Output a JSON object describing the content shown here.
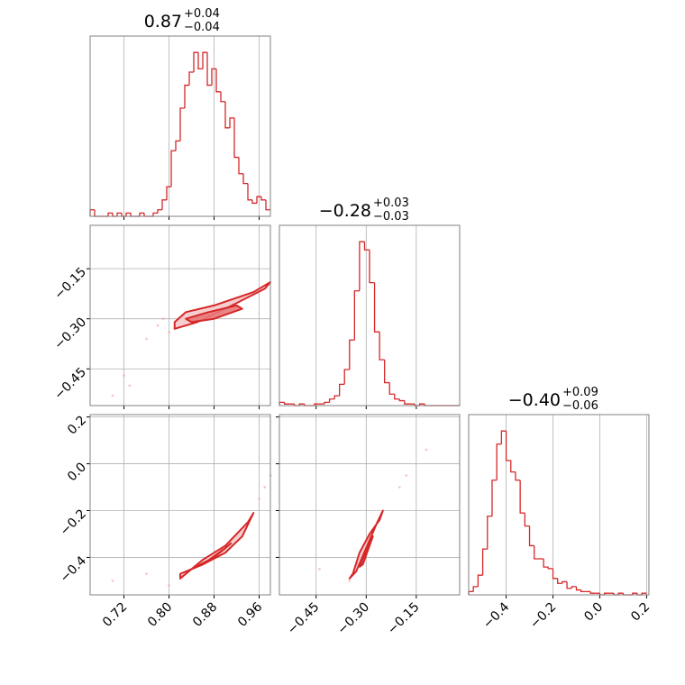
{
  "chart_data": {
    "type": "corner",
    "color": "#d62728",
    "grid": true,
    "parameters": [
      {
        "title": {
          "value": "0.87",
          "plus": "+0.04",
          "minus": "−0.04"
        },
        "lim": [
          0.66,
          0.98
        ],
        "ticks": [
          0.72,
          {
            "value": 0.8,
            "label": "0.80"
          },
          0.88,
          0.96
        ],
        "bins": [
          0.66,
          0.668,
          0.676,
          0.684,
          0.692,
          0.7,
          0.708,
          0.716,
          0.724,
          0.732,
          0.74,
          0.748,
          0.756,
          0.764,
          0.772,
          0.78,
          0.788,
          0.796,
          0.804,
          0.812,
          0.82,
          0.828,
          0.836,
          0.844,
          0.852,
          0.86,
          0.868,
          0.876,
          0.884,
          0.892,
          0.9,
          0.908,
          0.916,
          0.924,
          0.932,
          0.94,
          0.948,
          0.956,
          0.964,
          0.972,
          0.98
        ],
        "counts": [
          2,
          0,
          0,
          0,
          1,
          0,
          1,
          0,
          1,
          0,
          0,
          1,
          0,
          0,
          1,
          2,
          5,
          9,
          20,
          23,
          33,
          40,
          44,
          50,
          45,
          50,
          40,
          45,
          38,
          35,
          27,
          30,
          18,
          13,
          10,
          5,
          4,
          6,
          5,
          2
        ],
        "count_lim": [
          0,
          55
        ]
      },
      {
        "title": {
          "value": "−0.28",
          "plus": "+0.03",
          "minus": "−0.03"
        },
        "lim": [
          -0.56,
          -0.02
        ],
        "ticks": [
          {
            "value": -0.45,
            "label": "−0.45"
          },
          {
            "value": -0.3,
            "label": "−0.30"
          },
          {
            "value": -0.15,
            "label": "−0.15"
          }
        ],
        "bins": [
          -0.56,
          -0.545,
          -0.53,
          -0.515,
          -0.5,
          -0.485,
          -0.47,
          -0.455,
          -0.44,
          -0.425,
          -0.41,
          -0.395,
          -0.38,
          -0.365,
          -0.35,
          -0.335,
          -0.32,
          -0.305,
          -0.29,
          -0.275,
          -0.26,
          -0.245,
          -0.23,
          -0.215,
          -0.2,
          -0.185,
          -0.17,
          -0.155,
          -0.14,
          -0.125,
          -0.11,
          -0.095,
          -0.08,
          -0.065,
          -0.05,
          -0.035,
          -0.02
        ],
        "counts": [
          2,
          1,
          1,
          0,
          1,
          0,
          0,
          1,
          1,
          2,
          4,
          6,
          13,
          22,
          40,
          70,
          100,
          95,
          75,
          45,
          28,
          14,
          7,
          4,
          3,
          1,
          1,
          0,
          1,
          0,
          0,
          0,
          0,
          0,
          0,
          0
        ],
        "count_lim": [
          0,
          110
        ]
      },
      {
        "title": {
          "value": "−0.40",
          "plus": "+0.09",
          "minus": "−0.06"
        },
        "lim": [
          -0.56,
          0.21
        ],
        "ticks": [
          {
            "value": -0.4,
            "label": "−0.4"
          },
          {
            "value": -0.2,
            "label": "−0.2"
          },
          {
            "value": 0,
            "label": "0.0"
          },
          0.2
        ],
        "bins": [
          -0.56,
          -0.54,
          -0.52,
          -0.5,
          -0.48,
          -0.46,
          -0.44,
          -0.42,
          -0.4,
          -0.38,
          -0.36,
          -0.34,
          -0.32,
          -0.3,
          -0.28,
          -0.26,
          -0.24,
          -0.22,
          -0.2,
          -0.18,
          -0.16,
          -0.14,
          -0.12,
          -0.1,
          -0.08,
          -0.06,
          -0.04,
          -0.02,
          0,
          0.02,
          0.04,
          0.06,
          0.08,
          0.1,
          0.12,
          0.14,
          0.16,
          0.18,
          0.2
        ],
        "counts": [
          2,
          5,
          12,
          28,
          48,
          70,
          92,
          100,
          82,
          75,
          70,
          50,
          42,
          30,
          22,
          22,
          17,
          16,
          10,
          7,
          8,
          4,
          5,
          3,
          2,
          2,
          1,
          1,
          0,
          1,
          1,
          0,
          1,
          0,
          0,
          1,
          0,
          1
        ],
        "count_lim": [
          0,
          110
        ]
      }
    ],
    "pairs": [
      {
        "contours": [
          {
            "x": [
              0.81,
              0.83,
              0.88,
              0.95,
              0.98,
              0.97,
              0.9,
              0.85,
              0.81
            ],
            "y": [
              -0.31,
              -0.28,
              -0.26,
              -0.22,
              -0.19,
              -0.21,
              -0.27,
              -0.31,
              -0.33
            ]
          },
          {
            "x": [
              0.83,
              0.87,
              0.92,
              0.93,
              0.88,
              0.84
            ],
            "y": [
              -0.3,
              -0.28,
              -0.26,
              -0.27,
              -0.3,
              -0.31
            ]
          }
        ],
        "points": {
          "x": [
            0.72,
            0.73,
            0.7,
            0.78,
            0.79,
            0.8,
            0.76
          ],
          "y": [
            -0.47,
            -0.5,
            -0.53,
            -0.32,
            -0.3,
            -0.34,
            -0.36
          ]
        }
      },
      {
        "contours": [
          {
            "x": [
              0.82,
              0.86,
              0.9,
              0.93,
              0.95,
              0.94,
              0.9,
              0.86,
              0.82
            ],
            "y": [
              -0.47,
              -0.43,
              -0.38,
              -0.31,
              -0.21,
              -0.25,
              -0.35,
              -0.41,
              -0.49
            ]
          },
          {
            "x": [
              0.84,
              0.88,
              0.91,
              0.9,
              0.86
            ],
            "y": [
              -0.45,
              -0.4,
              -0.34,
              -0.36,
              -0.43
            ]
          }
        ],
        "points": {
          "x": [
            0.97,
            0.98,
            0.96,
            0.7,
            0.76,
            0.8
          ],
          "y": [
            -0.1,
            -0.05,
            -0.15,
            -0.5,
            -0.47,
            -0.52
          ]
        }
      },
      {
        "contours": [
          {
            "x": [
              -0.34,
              -0.32,
              -0.29,
              -0.26,
              -0.25,
              -0.27,
              -0.3,
              -0.33,
              -0.35
            ],
            "y": [
              -0.47,
              -0.38,
              -0.3,
              -0.24,
              -0.2,
              -0.26,
              -0.36,
              -0.46,
              -0.49
            ]
          },
          {
            "x": [
              -0.32,
              -0.3,
              -0.28,
              -0.29,
              -0.31
            ],
            "y": [
              -0.44,
              -0.37,
              -0.31,
              -0.35,
              -0.43
            ]
          }
        ],
        "points": {
          "x": [
            -0.2,
            -0.18,
            -0.12,
            -0.44,
            -0.35
          ],
          "y": [
            -0.1,
            -0.05,
            0.06,
            -0.45,
            -0.5
          ]
        }
      }
    ]
  }
}
